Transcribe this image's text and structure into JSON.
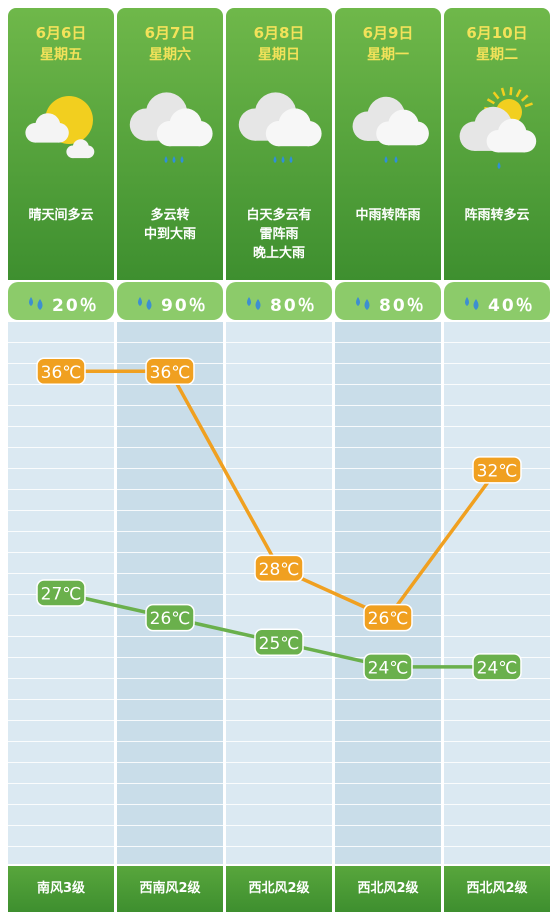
{
  "days": [
    {
      "date": "6月6日",
      "weekday": "星期五",
      "icon": "sun-cloud-icon",
      "description": "晴天间多云",
      "rain_chance": "20％",
      "wind": "南风3级"
    },
    {
      "date": "6月7日",
      "weekday": "星期六",
      "icon": "cloud-rain-icon",
      "description": "多云转\n中到大雨",
      "rain_chance": "90％",
      "wind": "西南风2级"
    },
    {
      "date": "6月8日",
      "weekday": "星期日",
      "icon": "cloud-rain-icon",
      "description": "白天多云有\n雷阵雨\n晚上大雨",
      "rain_chance": "80％",
      "wind": "西北风2级"
    },
    {
      "date": "6月9日",
      "weekday": "星期一",
      "icon": "cloud-light-rain-icon",
      "description": "中雨转阵雨",
      "rain_chance": "80％",
      "wind": "西北风2级"
    },
    {
      "date": "6月10日",
      "weekday": "星期二",
      "icon": "sun-cloud-rain-icon",
      "description": "阵雨转多云",
      "rain_chance": "40％",
      "wind": "西北风2级"
    }
  ],
  "colors": {
    "header_green": "#4a9a35",
    "high_line": "#f0a020",
    "low_line": "#6ab04c",
    "stripe_light": "#dbe9f2",
    "stripe_dark": "#c9dde9"
  },
  "chart_data": {
    "type": "line",
    "categories": [
      "6月6日",
      "6月7日",
      "6月8日",
      "6月9日",
      "6月10日"
    ],
    "series": [
      {
        "values": [
          36,
          36,
          28,
          26,
          32
        ],
        "labels": [
          "36℃",
          "36℃",
          "28℃",
          "26℃",
          "32℃"
        ],
        "color": "#f0a020"
      },
      {
        "values": [
          27,
          26,
          25,
          24,
          24
        ],
        "labels": [
          "27℃",
          "26℃",
          "25℃",
          "24℃",
          "24℃"
        ],
        "color": "#6ab04c"
      }
    ],
    "ylim": [
      16,
      38
    ],
    "grid": true
  }
}
